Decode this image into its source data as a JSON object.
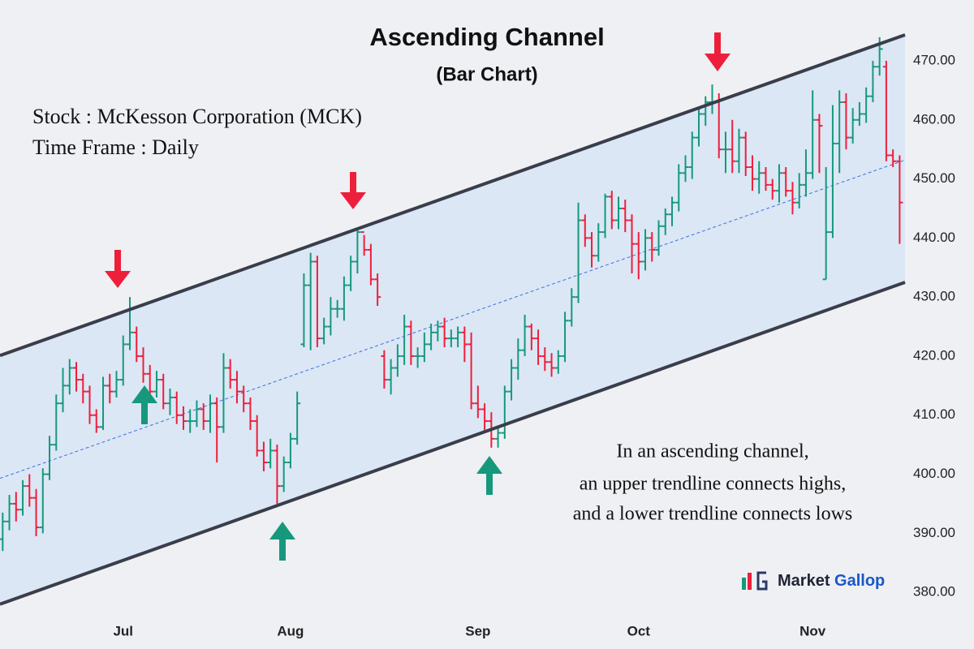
{
  "chart_data": {
    "type": "ohlc",
    "title": "Ascending Channel",
    "subtitle": "(Bar Chart)",
    "annotations": [
      "Stock : McKesson Corporation (MCK)",
      "Time Frame : Daily"
    ],
    "note": [
      "In an ascending channel,",
      "an upper trendline connects highs,",
      "and a lower trendline connects lows"
    ],
    "logo": [
      "Market",
      "Gallop"
    ],
    "up_color": "#16987c",
    "down_color": "#ee1f3b",
    "xlim": [
      -0.4,
      134.8
    ],
    "xticks": [
      {
        "value": 18,
        "label": "Jul"
      },
      {
        "value": 43,
        "label": "Aug"
      },
      {
        "value": 71,
        "label": "Sep"
      },
      {
        "value": 95,
        "label": "Oct"
      },
      {
        "value": 121,
        "label": "Nov"
      }
    ],
    "ylim": [
      375.9,
      480.3
    ],
    "yticks": [
      {
        "value": 380,
        "label": "380.00"
      },
      {
        "value": 390,
        "label": "390.00"
      },
      {
        "value": 400,
        "label": "400.00"
      },
      {
        "value": 410,
        "label": "410.00"
      },
      {
        "value": 420,
        "label": "420.00"
      },
      {
        "value": 430,
        "label": "430.00"
      },
      {
        "value": 440,
        "label": "440.00"
      },
      {
        "value": 450,
        "label": "450.00"
      },
      {
        "value": 460,
        "label": "460.00"
      },
      {
        "value": 470,
        "label": "470.00"
      }
    ],
    "channel": {
      "upper": [
        420.1,
        474.4
      ],
      "middle": [
        399.3,
        453.2
      ],
      "lower": [
        378,
        432.5
      ],
      "color": "#3a3d4a",
      "fill": "#dbe7f5",
      "middle_color": "#3b6fe0"
    },
    "ohlc": {
      "open": [
        389,
        392,
        395,
        394,
        398,
        396,
        391,
        400,
        405,
        412,
        415,
        418,
        416,
        414,
        410,
        408,
        415,
        414,
        416,
        422,
        424,
        420,
        417,
        414,
        416,
        412,
        413,
        410,
        409,
        409,
        411,
        409,
        412,
        408,
        418,
        416,
        414,
        412,
        409,
        404,
        402,
        404,
        398,
        402,
        406,
        422,
        432,
        436,
        423,
        425,
        428,
        428,
        432,
        436,
        441,
        438,
        433,
        420,
        416,
        418,
        420,
        425,
        420,
        420,
        422,
        424,
        425,
        423,
        423,
        424,
        422,
        412,
        411,
        409,
        406,
        407,
        414,
        418,
        421,
        425,
        423,
        420,
        419,
        418,
        420,
        426,
        430,
        443,
        440,
        437,
        441,
        447,
        443,
        445,
        443,
        439,
        436,
        440,
        438,
        442,
        444,
        446,
        451,
        452,
        457,
        461,
        463,
        463,
        455,
        455,
        453,
        457,
        452,
        450,
        451,
        449,
        448,
        451,
        448,
        446,
        449,
        451,
        460,
        433,
        441,
        456,
        463,
        457,
        460,
        461,
        464,
        469,
        469,
        454,
        453
      ],
      "high": [
        393.5,
        396.5,
        397,
        399,
        400,
        397.5,
        401,
        406.5,
        413.5,
        418,
        419.5,
        419,
        417,
        415,
        411,
        416.5,
        417,
        417.5,
        423.5,
        430,
        425,
        421.5,
        418.5,
        417.5,
        417,
        414.5,
        414,
        411.5,
        411,
        412.5,
        412,
        413.5,
        413,
        420.5,
        419.5,
        417.5,
        415,
        413,
        410,
        405.5,
        406,
        405,
        403,
        407,
        414,
        434,
        437.5,
        437,
        426.5,
        430,
        429.5,
        433.5,
        437,
        441.5,
        440.5,
        439,
        434,
        421,
        419.5,
        422,
        427,
        426,
        421.5,
        424,
        425.5,
        426,
        426.5,
        424.5,
        425,
        425,
        424,
        415,
        412,
        410.5,
        408,
        415,
        419.5,
        423,
        427,
        425.5,
        424.5,
        421.5,
        420.5,
        421,
        427.5,
        431.5,
        446,
        444,
        441,
        442.5,
        447.5,
        448,
        447,
        446.5,
        444,
        441,
        441.5,
        441,
        443,
        445,
        447,
        452.5,
        454,
        458,
        462,
        464,
        466,
        464.5,
        458,
        460,
        458.5,
        458,
        454,
        453,
        452,
        450,
        452.5,
        452,
        449.5,
        451,
        455,
        465,
        461,
        452,
        462.5,
        465,
        464.5,
        462,
        463,
        465.5,
        470,
        474,
        470,
        455,
        454
      ],
      "low": [
        387,
        390.5,
        392,
        393,
        394.5,
        389.5,
        390,
        399,
        404,
        410.5,
        413.5,
        414,
        412,
        408.5,
        407,
        407.5,
        412,
        413,
        415,
        421,
        419,
        415.5,
        412.5,
        413,
        411,
        410,
        408.5,
        407.5,
        407,
        408,
        407.5,
        407,
        402,
        407,
        414.5,
        412,
        410.5,
        407.5,
        403,
        400.5,
        401,
        395,
        397,
        401,
        405,
        421.5,
        421,
        421.5,
        422,
        423.5,
        426.5,
        426,
        431,
        434,
        437,
        432,
        428.5,
        414.5,
        413.5,
        416.5,
        418.5,
        418.5,
        418,
        419,
        421,
        422.5,
        421.5,
        421.5,
        421.5,
        419,
        411,
        409.5,
        407,
        404.5,
        404.5,
        406,
        412.5,
        416,
        420,
        421,
        418.5,
        417.5,
        416.5,
        417,
        419,
        425,
        429,
        438.5,
        435,
        436,
        440,
        441.5,
        441.5,
        441,
        434,
        433,
        434.5,
        436,
        437,
        440.5,
        442,
        444.5,
        449.5,
        450,
        455.5,
        459,
        461,
        453.5,
        451,
        451,
        451,
        450.5,
        448,
        447.5,
        448,
        446.5,
        446,
        447,
        444,
        445,
        447,
        450,
        451,
        433,
        440,
        451,
        455,
        456,
        459,
        459.5,
        463,
        467.5,
        453,
        452,
        439
      ],
      "close": [
        392,
        395,
        394,
        398,
        396,
        391,
        400,
        405,
        412,
        415,
        418,
        416,
        414,
        410,
        408,
        415,
        414,
        416,
        422,
        424,
        420,
        417,
        414,
        416,
        412,
        413,
        410,
        409,
        409,
        411,
        409,
        412,
        408,
        418,
        416,
        414,
        412,
        409,
        404,
        402,
        404,
        398,
        402,
        406,
        412,
        432,
        436,
        423,
        425,
        428,
        428,
        432,
        436,
        441,
        438,
        433,
        430,
        416,
        418,
        420,
        425,
        420,
        420,
        422,
        424,
        425,
        423,
        423,
        424,
        422,
        412,
        411,
        409,
        406,
        407,
        414,
        418,
        421,
        425,
        423,
        420,
        419,
        418,
        420,
        426,
        430,
        443,
        440,
        437,
        441,
        447,
        443,
        445,
        443,
        439,
        436,
        440,
        438,
        442,
        444,
        446,
        451,
        452,
        457,
        461,
        463,
        463,
        455,
        455,
        453,
        457,
        452,
        450,
        451,
        449,
        448,
        451,
        448,
        446,
        449,
        451,
        460,
        459,
        441,
        456,
        463,
        457,
        460,
        461,
        464,
        469,
        472,
        454,
        453,
        446
      ]
    }
  }
}
